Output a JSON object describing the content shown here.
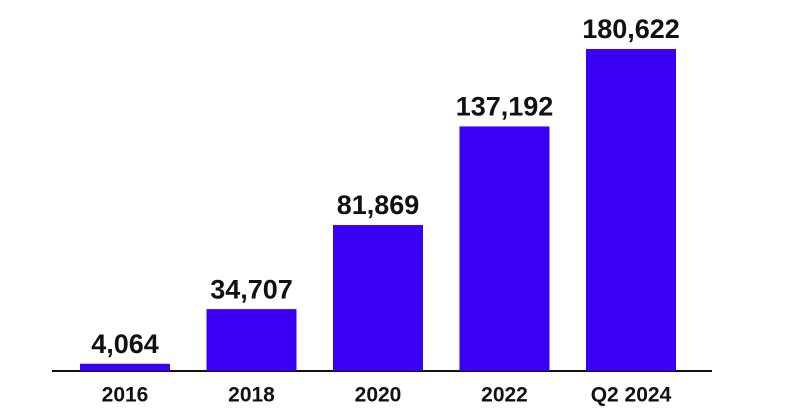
{
  "chart_data": {
    "type": "bar",
    "categories": [
      "2016",
      "2018",
      "2020",
      "2022",
      "Q2 2024"
    ],
    "values": [
      4064,
      34707,
      81869,
      137192,
      180622
    ],
    "value_labels": [
      "4,064",
      "34,707",
      "81,869",
      "137,192",
      "180,622"
    ],
    "color": "#3a00f4"
  }
}
